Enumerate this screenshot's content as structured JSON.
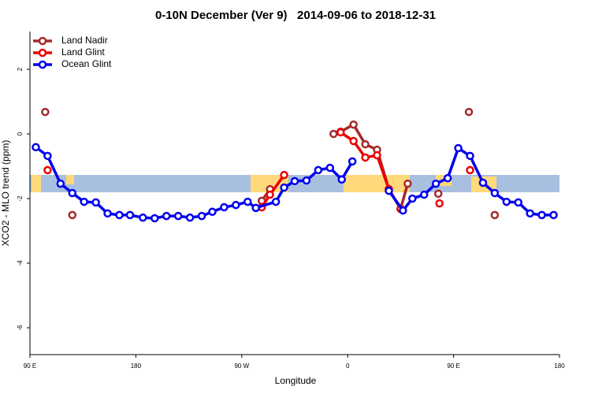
{
  "chart_data": {
    "type": "line",
    "title": "0-10N December (Ver 9)   2014-09-06 to 2018-12-31",
    "x_label": "Longitude",
    "y_label": "XCO2 - MLO trend (ppm)",
    "xlim": [
      90,
      540
    ],
    "ylim": [
      -6.83,
      3.17
    ],
    "xticks": [
      {
        "value": 90,
        "label": "90 E"
      },
      180,
      {
        "value": 270,
        "label": "90 W"
      },
      {
        "value": 360,
        "label": "0"
      },
      {
        "value": 450,
        "label": "90 E"
      },
      {
        "value": 540,
        "label": "180"
      }
    ],
    "yticks": [
      2,
      0,
      -2,
      -4,
      -6
    ],
    "legend": "top-left",
    "series": [
      {
        "name": "Land Nadir",
        "color": "#a52a2a",
        "x": [
          103,
          126,
          287,
          294,
          348,
          354,
          365,
          375,
          385,
          395,
          405,
          411,
          437,
          463,
          485
        ],
        "values": [
          0.68,
          -2.51,
          -2.07,
          -1.71,
          0,
          0.07,
          0.29,
          -0.32,
          -0.49,
          -1.71,
          -2.32,
          -1.54,
          -1.85,
          0.68,
          -2.51
        ],
        "connect": [
          false,
          false,
          false,
          true,
          false,
          true,
          true,
          true,
          true,
          true,
          true,
          true,
          false,
          false,
          false
        ]
      },
      {
        "name": "Land Glint",
        "color": "#ee0000",
        "x": [
          105,
          287,
          294,
          306,
          354,
          365,
          375,
          385,
          395,
          405,
          438,
          464
        ],
        "values": [
          -1.12,
          -2.27,
          -1.88,
          -1.27,
          0.05,
          -0.22,
          -0.73,
          -0.66,
          -1.71,
          -2.32,
          -2.15,
          -1.12
        ],
        "connect": [
          false,
          false,
          true,
          true,
          false,
          true,
          true,
          true,
          true,
          true,
          false,
          false
        ]
      },
      {
        "name": "Ocean Glint",
        "color": "#0000ee",
        "x": [
          95,
          105,
          116,
          126,
          136,
          146,
          156,
          166,
          175,
          186,
          196,
          206,
          216,
          226,
          236,
          245,
          255,
          265,
          275,
          282,
          299,
          306,
          315,
          325,
          335,
          345,
          355,
          364,
          395,
          407,
          415,
          425,
          435,
          445,
          454,
          464,
          475,
          485,
          495,
          505,
          515,
          525,
          535
        ],
        "values": [
          -0.41,
          -0.68,
          -1.54,
          -1.83,
          -2.1,
          -2.12,
          -2.46,
          -2.51,
          -2.51,
          -2.59,
          -2.61,
          -2.54,
          -2.54,
          -2.59,
          -2.54,
          -2.41,
          -2.27,
          -2.2,
          -2.1,
          -2.29,
          -2.1,
          -1.66,
          -1.46,
          -1.44,
          -1.12,
          -1.05,
          -1.41,
          -0.85,
          -1.76,
          -2.37,
          -2.0,
          -1.88,
          -1.54,
          -1.37,
          -0.44,
          -0.68,
          -1.51,
          -1.83,
          -2.1,
          -2.12,
          -2.46,
          -2.51,
          -2.51
        ],
        "connect": [
          false,
          true,
          true,
          true,
          true,
          true,
          true,
          true,
          true,
          true,
          true,
          true,
          true,
          true,
          true,
          true,
          true,
          true,
          true,
          true,
          true,
          true,
          true,
          true,
          true,
          true,
          true,
          true,
          false,
          true,
          true,
          true,
          true,
          true,
          true,
          true,
          true,
          true,
          true,
          true,
          true,
          true,
          true
        ]
      }
    ]
  }
}
